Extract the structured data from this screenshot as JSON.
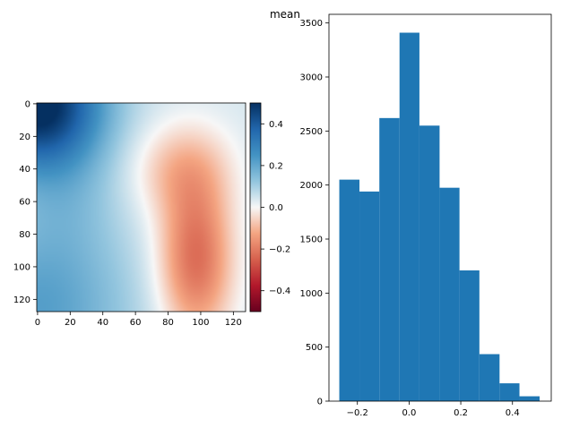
{
  "figure": {
    "title": "mean"
  },
  "chart_data": [
    {
      "type": "heatmap",
      "title": "",
      "xlabel": "",
      "ylabel": "",
      "colormap": "RdBu",
      "rows": 128,
      "cols": 128,
      "xlim": [
        0,
        127
      ],
      "ylim": [
        127,
        0
      ],
      "x_ticks": [
        0,
        20,
        40,
        60,
        80,
        100,
        120
      ],
      "y_ticks": [
        0,
        20,
        40,
        60,
        80,
        100,
        120
      ],
      "vmin": -0.5,
      "vmax": 0.5,
      "colorbar": {
        "ticks": [
          -0.4,
          -0.2,
          0.0,
          0.2,
          0.4
        ],
        "tick_labels": [
          "−0.4",
          "−0.2",
          "0.0",
          "0.2",
          "0.4"
        ]
      },
      "grid": false
    },
    {
      "type": "bar",
      "subtype": "histogram",
      "title": "",
      "xlabel": "",
      "ylabel": "",
      "color": "#1f77b4",
      "bin_edges": [
        -0.27,
        -0.192,
        -0.115,
        -0.037,
        0.04,
        0.118,
        0.195,
        0.272,
        0.35,
        0.427,
        0.505
      ],
      "values": [
        2050,
        1940,
        2620,
        3410,
        2550,
        1975,
        1210,
        435,
        165,
        45
      ],
      "xlim": [
        -0.31,
        0.55
      ],
      "ylim": [
        0,
        3580
      ],
      "x_ticks": [
        -0.2,
        0.0,
        0.2,
        0.4
      ],
      "x_tick_labels": [
        "−0.2",
        "0.0",
        "0.2",
        "0.4"
      ],
      "y_ticks": [
        0,
        500,
        1000,
        1500,
        2000,
        2500,
        3000,
        3500
      ],
      "grid": false
    }
  ]
}
